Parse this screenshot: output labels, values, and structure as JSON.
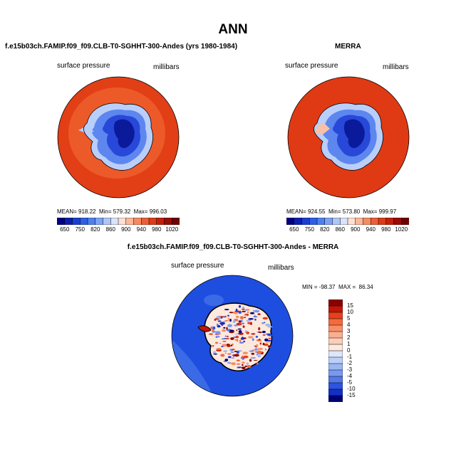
{
  "title": "ANN",
  "panels": [
    {
      "title": "f.e15b03ch.FAMIP.f09_f09.CLB-T0-SGHHT-300-Andes (yrs 1980-1984)",
      "variable": "surface pressure",
      "units": "millibars",
      "stats": {
        "mean_label": "MEAN=",
        "mean": "918.22",
        "min_label": "Min=",
        "min": "579.32",
        "max_label": "Max=",
        "max": "996.03"
      }
    },
    {
      "title": "MERRA",
      "variable": "surface pressure",
      "units": "millibars",
      "stats": {
        "mean_label": "MEAN=",
        "mean": "924.55",
        "min_label": "Min=",
        "min": "573.80",
        "max_label": "Max=",
        "max": "999.97"
      }
    },
    {
      "title": "f.e15b03ch.FAMIP.f09_f09.CLB-T0-SGHHT-300-Andes - MERRA",
      "variable": "surface pressure",
      "units": "millibars",
      "stats": {
        "min_label": "MIN =",
        "min": "-98.37",
        "max_label": "MAX =",
        "max": "86.34"
      }
    }
  ],
  "colorbar_abs": {
    "labels": [
      "650",
      "750",
      "820",
      "860",
      "900",
      "940",
      "980",
      "1020"
    ],
    "colors": [
      "#000080",
      "#0a1fb0",
      "#1a3fd0",
      "#2e5fe6",
      "#4f80f0",
      "#7da3f5",
      "#aec6f8",
      "#d8e4fb",
      "#fde0d2",
      "#fbb79a",
      "#f68a62",
      "#ec5f36",
      "#de3a17",
      "#c21f0c",
      "#990b05",
      "#6e0000"
    ]
  },
  "colorbar_diff": {
    "labels": [
      "15",
      "10",
      "5",
      "4",
      "3",
      "2",
      "1",
      "0",
      "-1",
      "-2",
      "-3",
      "-4",
      "-5",
      "-10",
      "-15"
    ],
    "colors": [
      "#8a0000",
      "#c0160a",
      "#e8401c",
      "#f26a3e",
      "#f78f66",
      "#faae90",
      "#fccdb8",
      "#fde9dd",
      "#dde6fb",
      "#bccff8",
      "#9ab6f3",
      "#7899ee",
      "#5577e8",
      "#2e53e0",
      "#1330c4",
      "#00007a"
    ]
  },
  "map_colors": {
    "ocean_model": "#e23f16",
    "shelf_model": "#ed5a2a",
    "ocean_merra": "#e03a14",
    "ice_deep": "#0a1a9a",
    "ice_mid": "#2748d8",
    "ice_light": "#5d86ef",
    "ice_edge": "#b9cffa",
    "diff_ocean": "#1e4ee0",
    "diff_ocean_light": "#3a6ae6"
  }
}
